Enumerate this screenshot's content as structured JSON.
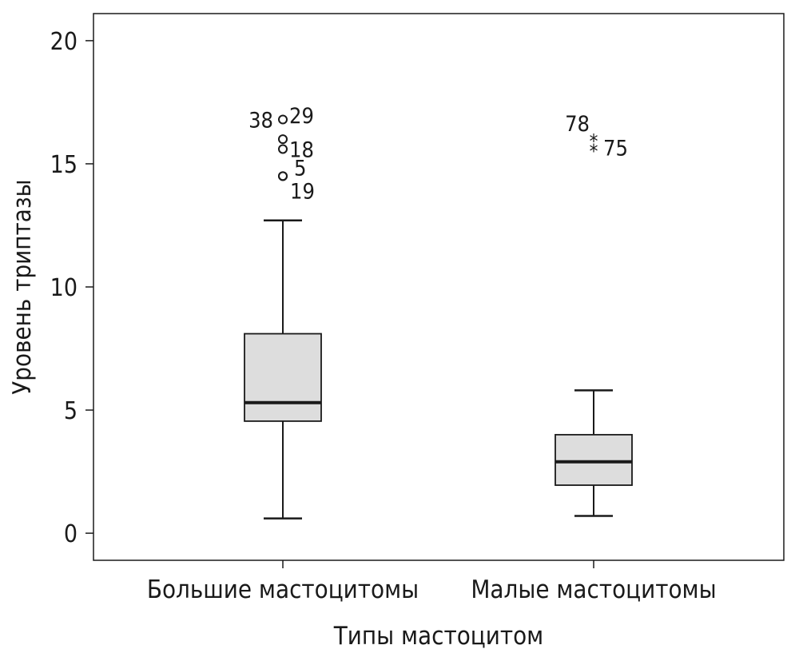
{
  "chart_data": {
    "type": "boxplot",
    "xlabel": "Типы мастоцитом",
    "ylabel": "Уровень триптазы",
    "ylim": [
      -1.1,
      21.1
    ],
    "yticks": [
      0,
      5,
      10,
      15,
      20
    ],
    "grid": false,
    "legend": "none",
    "categories": [
      "Большие мастоцитомы",
      "Малые мастоцитомы"
    ],
    "boxes": [
      {
        "category": "Большие мастоцитомы",
        "whisker_low": 0.6,
        "q1": 4.55,
        "median": 5.3,
        "q3": 8.1,
        "whisker_high": 12.7,
        "outliers": [
          {
            "value": 16.8,
            "label": "38",
            "marker": "circle"
          },
          {
            "value": 16.0,
            "label": "29",
            "marker": "circle"
          },
          {
            "value": 15.6,
            "label": "18",
            "marker": "circle"
          },
          {
            "value": 14.5,
            "label": "5",
            "marker": "circle"
          },
          {
            "value": 14.5,
            "label": "19",
            "marker": "circle"
          }
        ]
      },
      {
        "category": "Малые мастоцитомы",
        "whisker_low": 0.7,
        "q1": 1.95,
        "median": 2.9,
        "q3": 4.0,
        "whisker_high": 5.8,
        "outliers": [
          {
            "value": 16.0,
            "label": "78",
            "marker": "star"
          },
          {
            "value": 15.6,
            "label": "75",
            "marker": "star"
          }
        ]
      }
    ],
    "colors": {
      "box_fill": "#dddddd",
      "stroke": "#1a1a1a",
      "background": "#ffffff"
    }
  }
}
